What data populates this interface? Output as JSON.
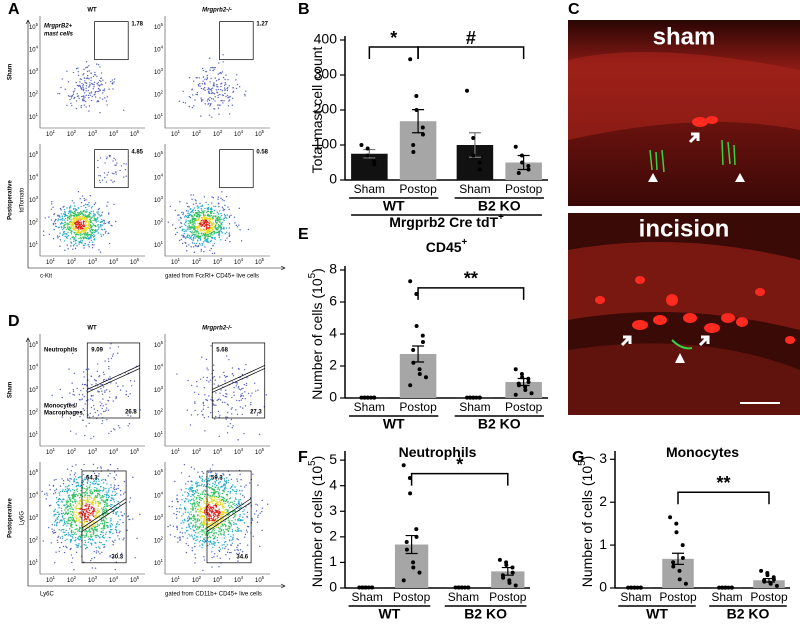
{
  "figure": {
    "panel_labels": [
      "A",
      "B",
      "C",
      "D",
      "E",
      "F",
      "G"
    ]
  },
  "flow_panels": [
    {
      "columns": [
        "WT",
        "Mrgprb2-/-"
      ],
      "rows": [
        "Sham",
        "Postoperative"
      ],
      "ylabel": "tdTomato",
      "xlabel": "c-Kit",
      "gating": "gated from FcεRI+ CD45+ live cells",
      "gate_label_lines": [
        "MrgprB2+",
        "mast cells"
      ],
      "gate_values": [
        [
          1.78,
          1.27
        ],
        [
          4.85,
          0.58
        ]
      ],
      "tick_base": "10",
      "tick_exponents": [
        1,
        2,
        3,
        4,
        5
      ]
    },
    {
      "columns": [
        "WT",
        "Mrgprb2-/-"
      ],
      "rows": [
        "Sham",
        "Postoperative"
      ],
      "ylabel": "Ly6G",
      "xlabel": "Ly6C",
      "gating": "gated from CD11b+ CD45+ live cells",
      "gate_label_lines": [
        "Neutrophils",
        "Monocytes/",
        "Macrophages"
      ],
      "upper_values": [
        [
          9.09,
          5.68
        ],
        [
          64.3,
          59.3
        ]
      ],
      "lower_values": [
        [
          26.8,
          27.3
        ],
        [
          30.3,
          34.6
        ]
      ],
      "tick_base": "10",
      "tick_exponents": [
        1,
        2,
        3,
        4,
        5
      ]
    }
  ],
  "image_panel": {
    "labels": [
      "sham",
      "incision"
    ]
  },
  "chart_data": [
    {
      "type": "bar",
      "ylabel": "Total mast cell count",
      "categories": [
        "Sham",
        "Postop",
        "Sham",
        "Postop"
      ],
      "groups": [
        "WT",
        "B2 KO"
      ],
      "group_title": "Mrgprb2 Cre tdT",
      "group_title_sup": "+",
      "values": [
        75,
        168,
        100,
        50
      ],
      "errors": [
        12,
        33,
        35,
        20
      ],
      "points": [
        [
          100,
          90,
          70,
          55,
          45
        ],
        [
          345,
          240,
          200,
          150,
          130,
          100,
          80
        ],
        [
          255,
          120,
          70,
          50,
          30
        ],
        [
          95,
          70,
          50,
          40,
          30,
          20
        ]
      ],
      "colors": [
        "#111111",
        "#a6a6a6",
        "#111111",
        "#a6a6a6"
      ],
      "ylim": [
        0,
        400
      ],
      "yticks": [
        0,
        100,
        200,
        300,
        400
      ],
      "significance": [
        "*",
        "#"
      ]
    },
    {
      "type": "bar",
      "title": "CD45",
      "title_sup": "+",
      "ylabel": "Number of cells (10",
      "ylabel_sup": "5",
      "ylabel_end": ")",
      "categories": [
        "Sham",
        "Postop",
        "Sham",
        "Postop"
      ],
      "groups": [
        "WT",
        "B2 KO"
      ],
      "values": [
        0.02,
        2.75,
        0.03,
        1.0
      ],
      "errors": [
        0.01,
        0.5,
        0.01,
        0.22
      ],
      "points": [
        [
          0.02,
          0.02,
          0.02,
          0.02,
          0.02,
          0.02,
          0.02,
          0.02
        ],
        [
          7.3,
          6.5,
          4.5,
          3.9,
          3.5,
          3.0,
          2.2,
          1.8,
          1.5,
          1.3,
          0.8
        ],
        [
          0.02,
          0.02,
          0.02,
          0.02,
          0.02,
          0.02,
          0.02,
          0.02
        ],
        [
          1.8,
          1.5,
          1.3,
          1.2,
          1.0,
          0.9,
          0.8,
          0.7,
          0.5,
          0.3,
          0.2
        ]
      ],
      "colors": [
        "#111111",
        "#a6a6a6",
        "#111111",
        "#a6a6a6"
      ],
      "ylim": [
        0,
        8
      ],
      "yticks": [
        0,
        2,
        4,
        6,
        8
      ],
      "significance": [
        "**"
      ]
    },
    {
      "type": "bar",
      "title": "Neutrophils",
      "ylabel": "Number of cells (10",
      "ylabel_sup": "5",
      "ylabel_end": ")",
      "categories": [
        "Sham",
        "Postop",
        "Sham",
        "Postop"
      ],
      "groups": [
        "WT",
        "B2 KO"
      ],
      "values": [
        0.02,
        1.7,
        0.02,
        0.65
      ],
      "errors": [
        0.01,
        0.35,
        0.01,
        0.15
      ],
      "points": [
        [
          0.02,
          0.02,
          0.02,
          0.02,
          0.02,
          0.02,
          0.02,
          0.02
        ],
        [
          4.8,
          4.3,
          3.7,
          2.3,
          2.0,
          1.8,
          1.5,
          1.0,
          0.8,
          0.6,
          0.3
        ],
        [
          0.02,
          0.02,
          0.02,
          0.02,
          0.02,
          0.02,
          0.02,
          0.02
        ],
        [
          1.1,
          1.0,
          0.9,
          0.8,
          0.6,
          0.5,
          0.4,
          0.3,
          0.2,
          0.1
        ]
      ],
      "colors": [
        "#111111",
        "#a6a6a6",
        "#111111",
        "#a6a6a6"
      ],
      "ylim": [
        0,
        5.2
      ],
      "yticks": [
        0,
        1,
        2,
        3,
        4,
        5
      ],
      "significance": [
        "*"
      ]
    },
    {
      "type": "bar",
      "title": "Monocytes",
      "ylabel": "Number of cells (10",
      "ylabel_sup": "5",
      "ylabel_end": ")",
      "categories": [
        "Sham",
        "Postop",
        "Sham",
        "Postop"
      ],
      "groups": [
        "WT",
        "B2 KO"
      ],
      "values": [
        0.01,
        0.68,
        0.01,
        0.18
      ],
      "errors": [
        0.005,
        0.13,
        0.005,
        0.04
      ],
      "points": [
        [
          0.01,
          0.01,
          0.01,
          0.01,
          0.01,
          0.01,
          0.01,
          0.01
        ],
        [
          1.65,
          1.5,
          1.3,
          1.0,
          0.7,
          0.6,
          0.5,
          0.4,
          0.2,
          0.1
        ],
        [
          0.01,
          0.01,
          0.01,
          0.01,
          0.01,
          0.01,
          0.01,
          0.01
        ],
        [
          0.4,
          0.35,
          0.3,
          0.25,
          0.2,
          0.18,
          0.15,
          0.12,
          0.1,
          0.05
        ]
      ],
      "colors": [
        "#111111",
        "#a6a6a6",
        "#111111",
        "#a6a6a6"
      ],
      "ylim": [
        0,
        3.1
      ],
      "yticks": [
        0,
        1,
        2,
        3
      ],
      "significance": [
        "**"
      ]
    }
  ]
}
